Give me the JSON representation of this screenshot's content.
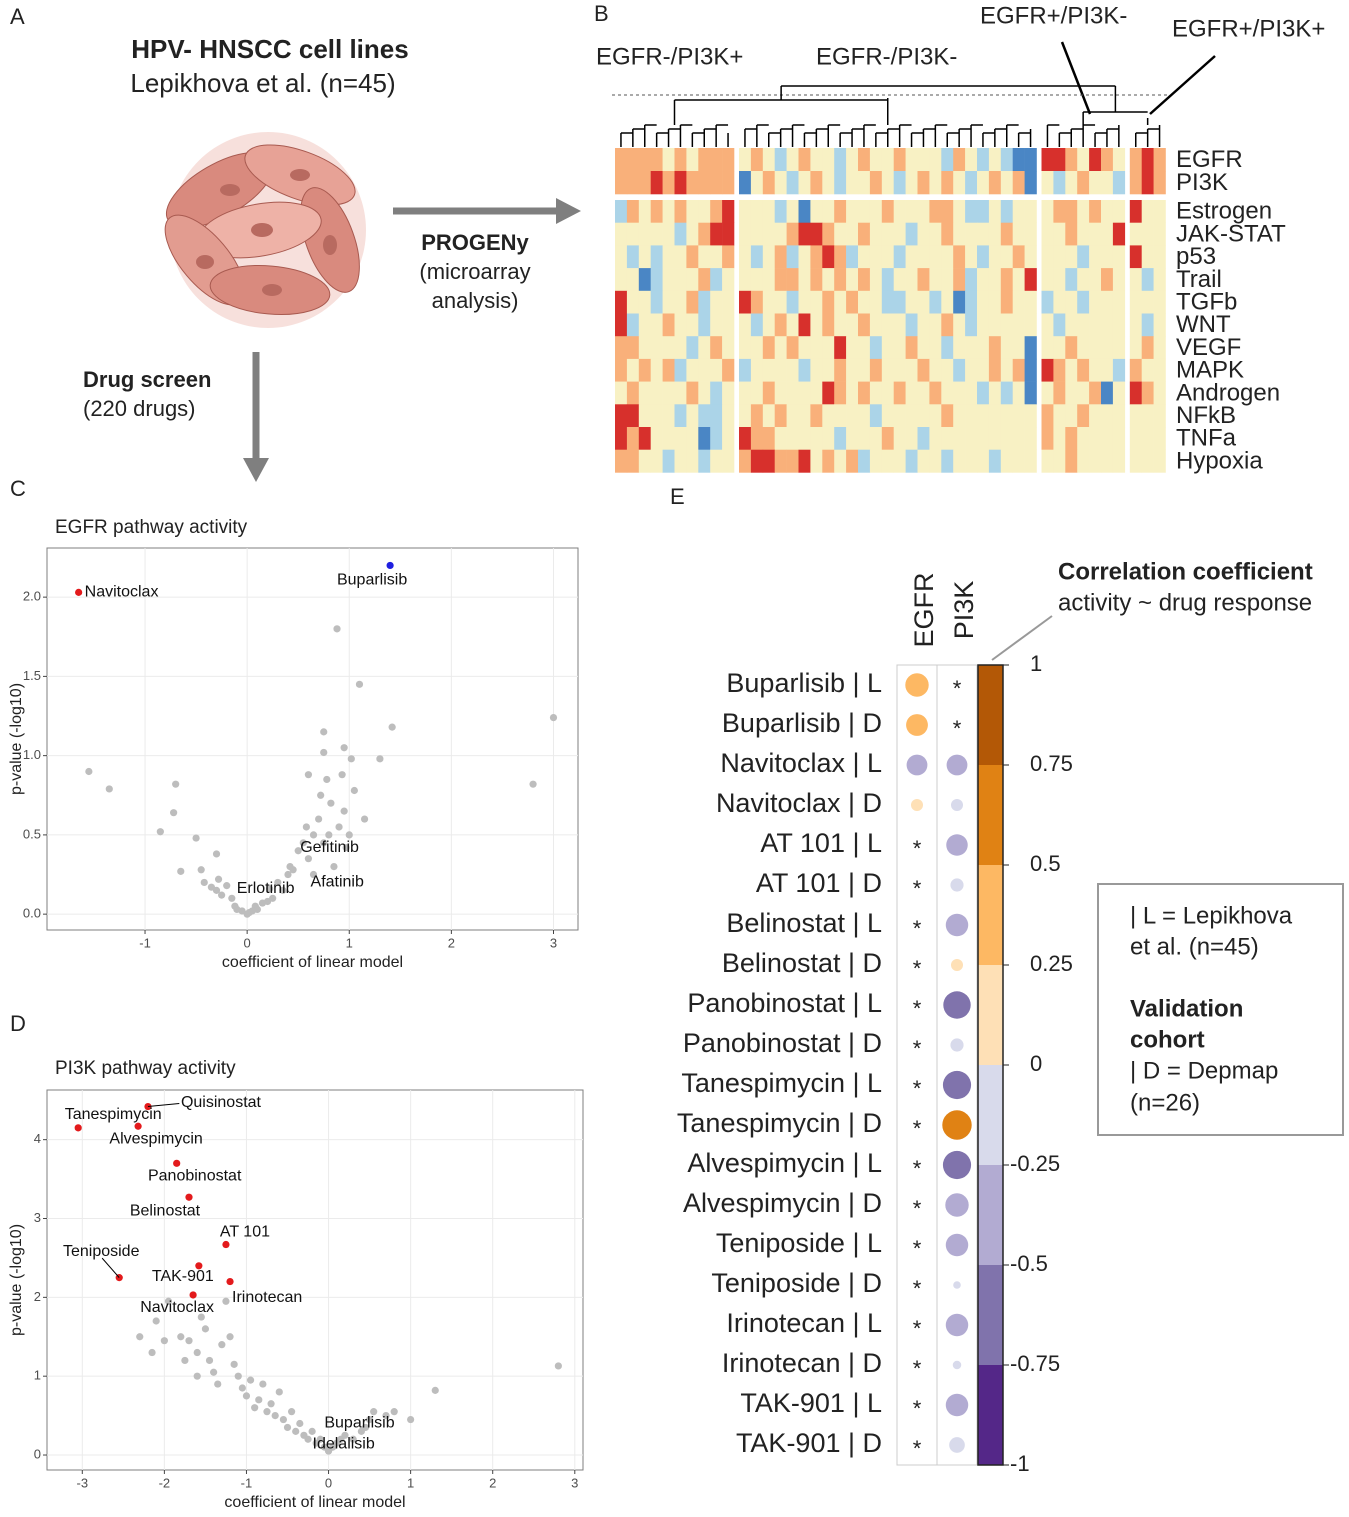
{
  "panel_letters": [
    "A",
    "B",
    "C",
    "D",
    "E"
  ],
  "diagram": {
    "title": "HPV- HNSCC cell lines",
    "subtitle": "Lepikhova et al. (n=45)",
    "arrow_right": {
      "label": "PROGENy",
      "sublabel": [
        "(microarray",
        "analysis)"
      ]
    },
    "arrow_down": {
      "label": "Drug screen",
      "sublabel": [
        "(220 drugs)"
      ]
    }
  },
  "chart_data": [
    {
      "type": "heatmap",
      "cluster_labels": [
        "EGFR-/PI3K+",
        "EGFR-/PI3K-",
        "EGFR+/PI3K-",
        "EGFR+/PI3K+"
      ],
      "rows": [
        "EGFR",
        "PI3K",
        "Estrogen",
        "JAK-STAT",
        "p53",
        "Trail",
        "TGFb",
        "WNT",
        "VEGF",
        "MAPK",
        "Androgen",
        "NFkB",
        "TNFa",
        "Hypoxia"
      ],
      "vlim": [
        -2,
        2
      ],
      "colors": [
        "#4a86c5",
        "#abd4e8",
        "#f8f1c4",
        "#f9b07a",
        "#d7302c"
      ],
      "values": [
        [
          1,
          1,
          1,
          1,
          0,
          1,
          0,
          1,
          1,
          1,
          0,
          1,
          0,
          -1,
          0,
          1,
          0,
          0,
          -1,
          0,
          1,
          0,
          0,
          1,
          0,
          0,
          0,
          -1,
          1,
          0,
          -1,
          0,
          -1,
          -2,
          -2,
          2,
          2,
          1,
          0,
          2,
          1,
          0,
          1,
          2,
          1
        ],
        [
          1,
          1,
          1,
          2,
          1,
          2,
          1,
          1,
          1,
          1,
          -2,
          0,
          1,
          0,
          -1,
          0,
          1,
          0,
          -1,
          0,
          0,
          1,
          0,
          -1,
          0,
          1,
          0,
          1,
          0,
          -1,
          0,
          1,
          0,
          1,
          -2,
          0,
          -1,
          0,
          1,
          0,
          0,
          -1,
          1,
          2,
          1
        ],
        [
          -1,
          1,
          0,
          1,
          0,
          1,
          0,
          0,
          1,
          2,
          0,
          0,
          0,
          -1,
          0,
          -2,
          0,
          0,
          1,
          0,
          0,
          0,
          1,
          0,
          0,
          0,
          1,
          1,
          0,
          -1,
          -1,
          0,
          -1,
          0,
          0,
          0,
          1,
          1,
          0,
          1,
          0,
          0,
          2,
          0,
          0
        ],
        [
          0,
          0,
          0,
          0,
          0,
          -1,
          0,
          1,
          2,
          2,
          0,
          0,
          0,
          0,
          1,
          2,
          2,
          1,
          0,
          0,
          1,
          0,
          0,
          0,
          -1,
          0,
          0,
          1,
          0,
          0,
          0,
          0,
          1,
          0,
          0,
          0,
          0,
          1,
          0,
          0,
          0,
          2,
          0,
          0,
          0
        ],
        [
          0,
          -1,
          0,
          -1,
          0,
          0,
          1,
          0,
          0,
          1,
          0,
          -1,
          0,
          1,
          -1,
          0,
          1,
          2,
          1,
          -1,
          0,
          0,
          0,
          -1,
          0,
          0,
          0,
          0,
          1,
          0,
          -1,
          0,
          0,
          1,
          0,
          0,
          0,
          0,
          -1,
          0,
          0,
          0,
          2,
          0,
          0
        ],
        [
          0,
          0,
          -2,
          -1,
          0,
          0,
          0,
          1,
          -1,
          0,
          0,
          0,
          0,
          1,
          1,
          0,
          1,
          0,
          1,
          0,
          1,
          0,
          -1,
          0,
          0,
          1,
          0,
          0,
          1,
          -1,
          0,
          0,
          1,
          0,
          2,
          0,
          0,
          -1,
          0,
          0,
          1,
          0,
          0,
          -1,
          0
        ],
        [
          2,
          0,
          0,
          -1,
          0,
          0,
          1,
          -1,
          0,
          0,
          2,
          1,
          0,
          0,
          -1,
          0,
          0,
          1,
          0,
          1,
          0,
          0,
          -1,
          -1,
          0,
          0,
          -1,
          0,
          -2,
          -1,
          0,
          0,
          1,
          0,
          0,
          -1,
          0,
          0,
          -1,
          0,
          0,
          0,
          0,
          0,
          0
        ],
        [
          2,
          -1,
          0,
          0,
          1,
          0,
          0,
          -1,
          0,
          0,
          0,
          -1,
          0,
          1,
          0,
          2,
          0,
          1,
          0,
          0,
          1,
          0,
          0,
          0,
          -1,
          0,
          0,
          1,
          0,
          -1,
          0,
          0,
          0,
          0,
          0,
          0,
          -1,
          0,
          0,
          0,
          0,
          0,
          0,
          -1,
          0
        ],
        [
          1,
          1,
          0,
          0,
          0,
          0,
          -1,
          0,
          1,
          0,
          0,
          0,
          1,
          0,
          1,
          0,
          0,
          0,
          2,
          0,
          0,
          -1,
          0,
          0,
          1,
          0,
          0,
          -1,
          0,
          0,
          0,
          1,
          0,
          0,
          -2,
          0,
          0,
          1,
          0,
          0,
          0,
          0,
          0,
          1,
          0
        ],
        [
          1,
          0,
          1,
          0,
          1,
          -1,
          0,
          0,
          0,
          1,
          -1,
          0,
          0,
          0,
          0,
          -1,
          0,
          0,
          1,
          0,
          0,
          1,
          0,
          0,
          0,
          1,
          0,
          0,
          -1,
          0,
          0,
          1,
          0,
          1,
          -2,
          2,
          1,
          0,
          1,
          0,
          0,
          -1,
          1,
          0,
          0
        ],
        [
          0,
          1,
          0,
          0,
          0,
          0,
          1,
          0,
          -1,
          0,
          0,
          0,
          1,
          0,
          0,
          0,
          0,
          2,
          1,
          0,
          1,
          0,
          0,
          1,
          0,
          0,
          1,
          0,
          0,
          0,
          -1,
          0,
          -1,
          0,
          -2,
          0,
          1,
          0,
          0,
          1,
          -2,
          0,
          2,
          1,
          0
        ],
        [
          2,
          2,
          0,
          0,
          0,
          -1,
          0,
          -1,
          -1,
          0,
          0,
          1,
          0,
          1,
          0,
          0,
          1,
          0,
          0,
          0,
          0,
          -1,
          0,
          0,
          0,
          0,
          0,
          1,
          0,
          0,
          0,
          0,
          0,
          0,
          0,
          1,
          0,
          0,
          1,
          0,
          0,
          0,
          0,
          0,
          0
        ],
        [
          2,
          1,
          2,
          0,
          0,
          0,
          0,
          -2,
          -1,
          0,
          2,
          1,
          1,
          0,
          0,
          0,
          0,
          0,
          -1,
          0,
          0,
          0,
          1,
          0,
          0,
          -1,
          0,
          0,
          0,
          0,
          0,
          0,
          0,
          0,
          0,
          1,
          0,
          1,
          0,
          0,
          0,
          0,
          0,
          0,
          0
        ],
        [
          1,
          1,
          0,
          0,
          -1,
          0,
          0,
          -1,
          0,
          0,
          1,
          2,
          2,
          1,
          1,
          2,
          0,
          1,
          0,
          1,
          -1,
          0,
          0,
          0,
          -1,
          0,
          0,
          -1,
          0,
          0,
          0,
          -1,
          0,
          0,
          0,
          0,
          0,
          1,
          0,
          0,
          0,
          0,
          0,
          0,
          0
        ]
      ]
    },
    {
      "type": "scatter",
      "title": "EGFR pathway activity",
      "x_label": "coefficient of linear model",
      "y_label": "p-value (-log10)",
      "xlim": [
        -1.96,
        3.24
      ],
      "ylim": [
        -0.1,
        2.31
      ],
      "xticks": [
        -1,
        0,
        1,
        2,
        3
      ],
      "yticks": [
        {
          "value": 0,
          "label": "0.0"
        },
        0.5,
        {
          "value": 1,
          "label": "1.0"
        },
        1.5,
        {
          "value": 2,
          "label": "2.0"
        }
      ],
      "grid": true,
      "series": [
        {
          "color": "#bdbdbd",
          "x": [
            -1.55,
            -1.35,
            -0.7,
            -0.72,
            -0.85,
            -0.65,
            -0.5,
            -0.45,
            -0.42,
            -0.35,
            -0.3,
            -0.28,
            -0.25,
            -0.2,
            -0.15,
            -0.12,
            -0.1,
            -0.05,
            0,
            0.02,
            0.05,
            0.08,
            0.1,
            -0.3,
            0.15,
            0.2,
            0.25,
            0.3,
            0.35,
            0.4,
            0.42,
            0.45,
            0.55,
            0.58,
            0.6,
            0.65,
            0.7,
            0.72,
            0.75,
            0.8,
            0.82,
            0.85,
            0.9,
            0.93,
            0.95,
            0.97,
            1.0,
            1.02,
            1.05,
            1.1,
            0.88,
            0.75,
            0.75,
            1.3,
            1.42,
            2.8,
            3.0,
            0.95,
            0.78,
            0.6,
            1.15
          ],
          "values": [
            0.9,
            0.79,
            0.82,
            0.64,
            0.52,
            0.27,
            0.48,
            0.28,
            0.2,
            0.17,
            0.15,
            0.22,
            0.12,
            0.18,
            0.1,
            0.05,
            0.03,
            0.02,
            0,
            0.01,
            0.02,
            0.05,
            0.03,
            0.38,
            0.07,
            0.08,
            0.1,
            0.2,
            0.15,
            0.25,
            0.3,
            0.28,
            0.45,
            0.55,
            0.35,
            0.5,
            0.6,
            0.75,
            0.45,
            0.5,
            0.7,
            0.3,
            0.55,
            0.88,
            0.65,
            0.42,
            0.5,
            0.98,
            0.78,
            1.45,
            1.8,
            1.15,
            1.02,
            0.98,
            1.18,
            0.82,
            1.24,
            1.05,
            0.85,
            0.88,
            0.6
          ]
        },
        {
          "color": "#bdbdbd",
          "x": [
            0.5,
            0.22,
            0.65
          ],
          "values": [
            0.4,
            0.16,
            0.25
          ],
          "labels": [
            "Gefitinib",
            "Erlotinib",
            "Afatinib"
          ]
        },
        {
          "color": "#e31a1c",
          "x": [
            -1.65
          ],
          "values": [
            2.03
          ],
          "labels": [
            "Navitoclax"
          ]
        },
        {
          "color": "#1f1fe0",
          "x": [
            1.4
          ],
          "values": [
            2.2
          ],
          "labels": [
            "Buparlisib"
          ]
        }
      ]
    },
    {
      "type": "scatter",
      "title": "PI3K pathway activity",
      "x_label": "coefficient of linear model",
      "y_label": "p-value (-log10)",
      "xlim": [
        -3.43,
        3.1
      ],
      "ylim": [
        -0.19,
        4.63
      ],
      "xticks": [
        -3,
        -2,
        -1,
        0,
        1,
        2,
        3
      ],
      "yticks": [
        0,
        1,
        2,
        3,
        4
      ],
      "grid": true,
      "series": [
        {
          "color": "#bdbdbd",
          "x": [
            -2.3,
            -2.1,
            -2.0,
            -2.15,
            -1.95,
            -1.8,
            -1.7,
            -1.6,
            -1.5,
            -1.45,
            -1.4,
            -1.35,
            -1.3,
            -1.2,
            -1.15,
            -1.1,
            -1.05,
            -1.0,
            -0.95,
            -0.9,
            -0.85,
            -0.8,
            -0.75,
            -0.7,
            -0.65,
            -0.6,
            -0.55,
            -0.5,
            -0.45,
            -0.4,
            -0.35,
            -0.3,
            -0.25,
            -0.2,
            -0.15,
            -0.1,
            -0.05,
            0,
            0.05,
            0.1,
            0.15,
            0.2,
            0.3,
            0.4,
            0.5,
            0.55,
            0.7,
            0.8,
            1.0,
            1.3,
            2.8,
            -1.55,
            -1.25,
            -1.6,
            -1.75
          ],
          "values": [
            1.5,
            1.7,
            1.45,
            1.3,
            1.95,
            1.5,
            1.45,
            1.3,
            1.6,
            1.2,
            1.05,
            0.9,
            1.4,
            1.5,
            1.15,
            1.0,
            0.85,
            0.75,
            0.95,
            0.6,
            0.7,
            0.9,
            0.55,
            0.65,
            0.5,
            0.8,
            0.45,
            0.35,
            0.55,
            0.3,
            0.4,
            0.25,
            0.2,
            0.3,
            0.15,
            0.2,
            0.1,
            0.05,
            0.1,
            0.15,
            0.2,
            0.25,
            0.2,
            0.3,
            0.45,
            0.55,
            0.5,
            0.55,
            0.45,
            0.82,
            1.13,
            1.75,
            1.95,
            1.0,
            1.2
          ]
        },
        {
          "color": "#bdbdbd",
          "x": [
            0.45,
            0.05
          ],
          "values": [
            0.35,
            0.1
          ],
          "labels": [
            "Buparlisib",
            "Idelalisib"
          ]
        },
        {
          "color": "#e31a1c",
          "x": [
            -2.2,
            -3.05,
            -2.32,
            -1.85,
            -1.7,
            -1.25,
            -1.58,
            -2.55,
            -1.2,
            -1.65
          ],
          "values": [
            4.42,
            4.15,
            4.17,
            3.7,
            3.27,
            2.67,
            2.4,
            2.25,
            2.2,
            2.03
          ],
          "labels": [
            "Quisinostat",
            "Tanespimycin",
            "Alvespimycin",
            "Panobinostat",
            "Belinostat",
            "AT 101",
            "TAK-901",
            "Teniposide",
            "Irinotecan",
            "Navitoclax"
          ]
        }
      ]
    },
    {
      "type": "dotplot",
      "categories": [
        "Buparlisib | L",
        "Buparlisib | D",
        "Navitoclax | L",
        "Navitoclax | D",
        "AT 101 | L",
        "AT 101 | D",
        "Belinostat | L",
        "Belinostat | D",
        "Panobinostat | L",
        "Panobinostat | D",
        "Tanespimycin | L",
        "Tanespimycin | D",
        "Alvespimycin | L",
        "Alvespimycin | D",
        "Teniposide | L",
        "Teniposide | D",
        "Irinotecan | L",
        "Irinotecan | D",
        "TAK-901 | L",
        "TAK-901 | D"
      ],
      "series": [
        {
          "name": "EGFR",
          "values": [
            0.38,
            0.33,
            -0.3,
            0.1,
            null,
            null,
            null,
            null,
            null,
            null,
            null,
            null,
            null,
            null,
            null,
            null,
            null,
            null,
            null,
            null
          ]
        },
        {
          "name": "PI3K",
          "values": [
            null,
            null,
            -0.3,
            -0.1,
            -0.32,
            -0.12,
            -0.35,
            0.1,
            -0.52,
            -0.12,
            -0.55,
            0.6,
            -0.55,
            -0.38,
            -0.35,
            -0.04,
            -0.35,
            -0.05,
            -0.35,
            -0.17
          ]
        }
      ],
      "na_label": "*",
      "ylim": [
        -1,
        1
      ],
      "yticks": [
        1,
        0.75,
        0.5,
        0.25,
        0,
        -0.25,
        -0.5,
        -0.75,
        -1
      ],
      "colors": [
        "#b35806",
        "#e08214",
        "#fdb863",
        "#fee0b6",
        "#d8daeb",
        "#b2abd2",
        "#8073ac",
        "#542788"
      ],
      "colorbar_title": "Correlation coefficient",
      "colorbar_subtitle": "activity ~ drug response",
      "note": {
        "lines": [
          "| L = Lepikhova",
          "et al. (n=45)"
        ],
        "heading": [
          "Validation",
          "cohort"
        ],
        "lines2": [
          "| D = Depmap",
          "(n=26)"
        ]
      }
    }
  ]
}
